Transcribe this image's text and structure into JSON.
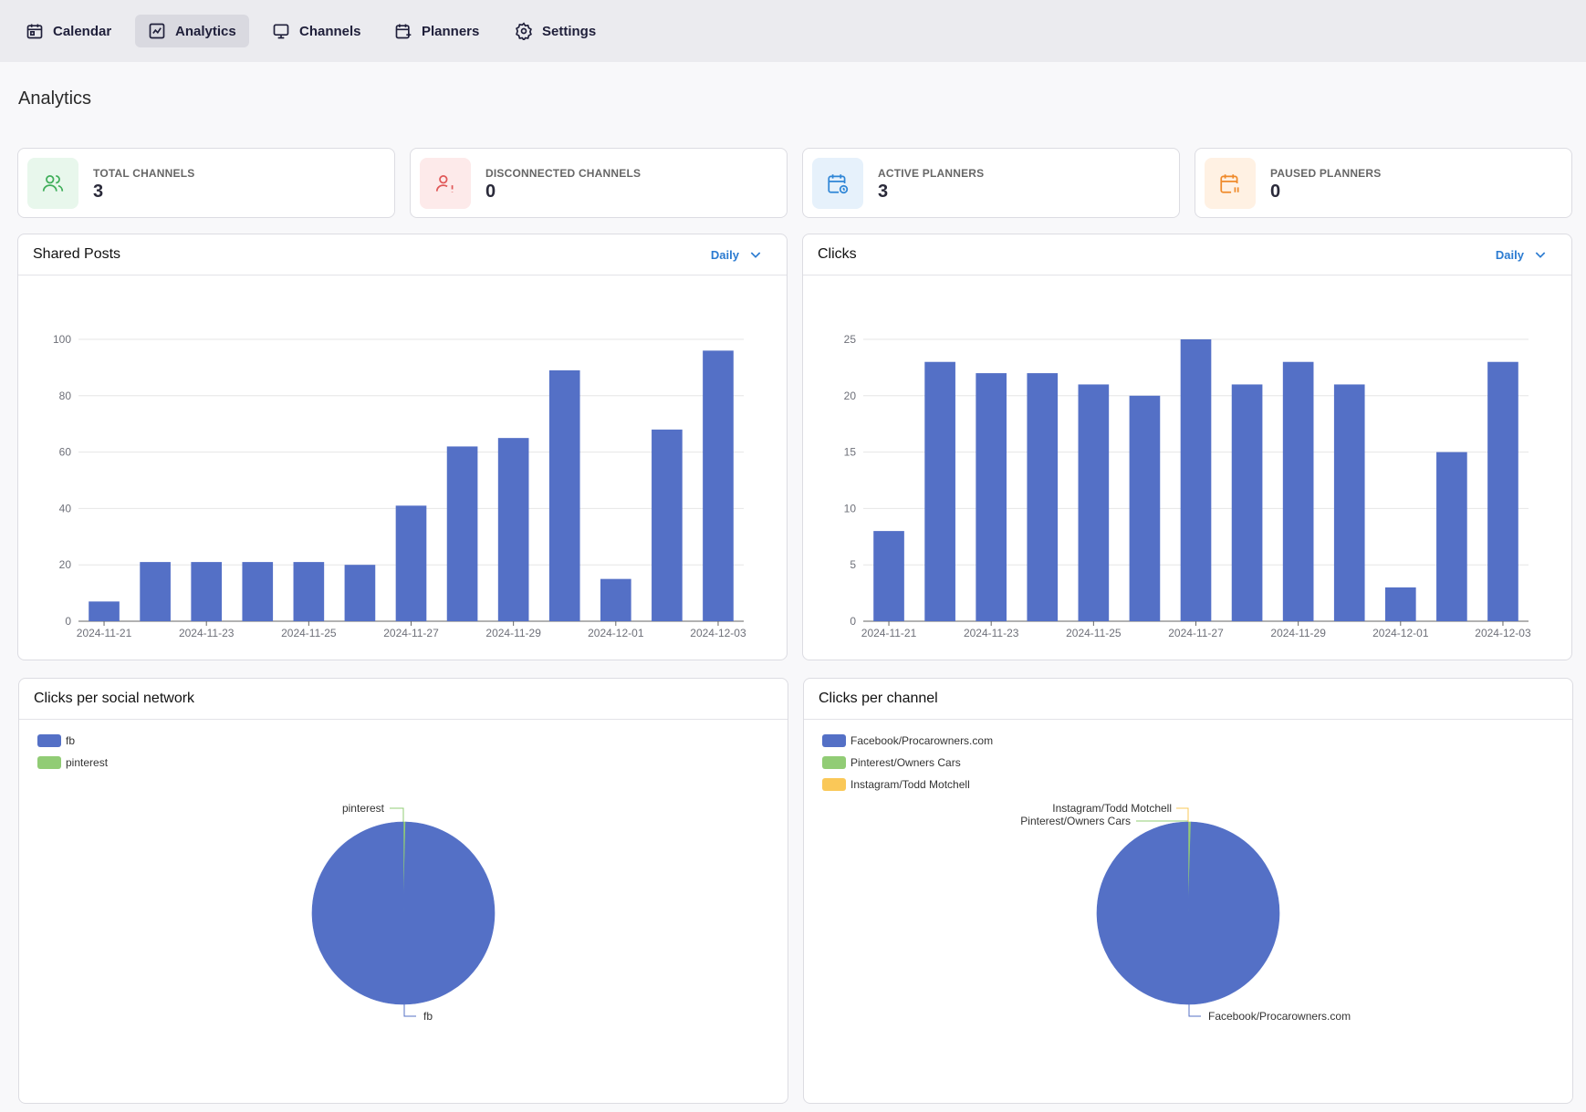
{
  "nav": {
    "items": [
      {
        "label": "Calendar",
        "icon": "calendar-icon",
        "active": false
      },
      {
        "label": "Analytics",
        "icon": "chart-icon",
        "active": true
      },
      {
        "label": "Channels",
        "icon": "monitor-icon",
        "active": false
      },
      {
        "label": "Planners",
        "icon": "calendar-plus-icon",
        "active": false
      },
      {
        "label": "Settings",
        "icon": "gear-icon",
        "active": false
      }
    ]
  },
  "page": {
    "title": "Analytics"
  },
  "stats": [
    {
      "label": "TOTAL CHANNELS",
      "value": "3",
      "icon": "users-icon",
      "color": "#3fae5a",
      "bg": "#e8f7ec"
    },
    {
      "label": "DISCONNECTED CHANNELS",
      "value": "0",
      "icon": "user-alert-icon",
      "color": "#e05858",
      "bg": "#fdeaea"
    },
    {
      "label": "ACTIVE PLANNERS",
      "value": "3",
      "icon": "calendar-clock-icon",
      "color": "#2f86d6",
      "bg": "#e6f1fb"
    },
    {
      "label": "PAUSED PLANNERS",
      "value": "0",
      "icon": "calendar-pause-icon",
      "color": "#ef8a2a",
      "bg": "#fff1e3"
    }
  ],
  "panels": {
    "shared_posts": {
      "title": "Shared Posts",
      "period": "Daily"
    },
    "clicks": {
      "title": "Clicks",
      "period": "Daily"
    },
    "clicks_network": {
      "title": "Clicks per social network"
    },
    "clicks_channel": {
      "title": "Clicks per channel"
    }
  },
  "colors": {
    "bar": "#5470c6",
    "green": "#91cc75",
    "yellow": "#fac858"
  },
  "chart_data": [
    {
      "id": "shared_posts",
      "type": "bar",
      "categories": [
        "2024-11-21",
        "2024-11-22",
        "2024-11-23",
        "2024-11-24",
        "2024-11-25",
        "2024-11-26",
        "2024-11-27",
        "2024-11-28",
        "2024-11-29",
        "2024-11-30",
        "2024-12-01",
        "2024-12-02",
        "2024-12-03"
      ],
      "tick_labels": [
        "2024-11-21",
        "2024-11-23",
        "2024-11-25",
        "2024-11-27",
        "2024-11-29",
        "2024-12-01",
        "2024-12-03"
      ],
      "values": [
        7,
        21,
        21,
        21,
        21,
        20,
        41,
        62,
        65,
        89,
        15,
        68,
        96
      ],
      "ylim": [
        0,
        100
      ],
      "yticks": [
        0,
        20,
        40,
        60,
        80,
        100
      ],
      "grid": true
    },
    {
      "id": "clicks",
      "type": "bar",
      "categories": [
        "2024-11-21",
        "2024-11-22",
        "2024-11-23",
        "2024-11-24",
        "2024-11-25",
        "2024-11-26",
        "2024-11-27",
        "2024-11-28",
        "2024-11-29",
        "2024-11-30",
        "2024-12-01",
        "2024-12-02",
        "2024-12-03"
      ],
      "tick_labels": [
        "2024-11-21",
        "2024-11-23",
        "2024-11-25",
        "2024-11-27",
        "2024-11-29",
        "2024-12-01",
        "2024-12-03"
      ],
      "values": [
        8,
        23,
        22,
        22,
        21,
        20,
        25,
        21,
        23,
        21,
        3,
        15,
        23
      ],
      "ylim": [
        0,
        25
      ],
      "yticks": [
        0,
        5,
        10,
        15,
        20,
        25
      ],
      "grid": true
    },
    {
      "id": "clicks_network",
      "type": "pie",
      "legend_position": "top-left",
      "slices": [
        {
          "name": "fb",
          "value": 99.6,
          "color": "#5470c6"
        },
        {
          "name": "pinterest",
          "value": 0.4,
          "color": "#91cc75"
        }
      ]
    },
    {
      "id": "clicks_channel",
      "type": "pie",
      "legend_position": "top-left",
      "slices": [
        {
          "name": "Facebook/Procarowners.com",
          "value": 99.5,
          "color": "#5470c6"
        },
        {
          "name": "Pinterest/Owners Cars",
          "value": 0.4,
          "color": "#91cc75"
        },
        {
          "name": "Instagram/Todd Motchell",
          "value": 0.1,
          "color": "#fac858"
        }
      ]
    }
  ]
}
